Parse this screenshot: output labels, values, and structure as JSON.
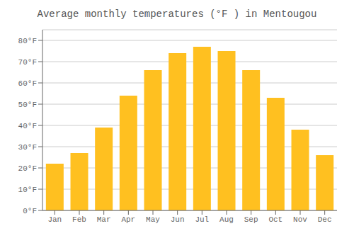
{
  "chart_data": {
    "type": "bar",
    "title": "Average monthly temperatures (°F ) in Mentougou",
    "categories": [
      "Jan",
      "Feb",
      "Mar",
      "Apr",
      "May",
      "Jun",
      "Jul",
      "Aug",
      "Sep",
      "Oct",
      "Nov",
      "Dec"
    ],
    "values": [
      22,
      27,
      39,
      54,
      66,
      74,
      77,
      75,
      66,
      53,
      38,
      26
    ],
    "color": "#FFC020",
    "ylim": [
      0,
      85
    ],
    "yticks": [
      {
        "value": 0,
        "label": "0°F"
      },
      {
        "value": 10,
        "label": "10°F"
      },
      {
        "value": 20,
        "label": "20°F"
      },
      {
        "value": 30,
        "label": "30°F"
      },
      {
        "value": 40,
        "label": "40°F"
      },
      {
        "value": 50,
        "label": "50°F"
      },
      {
        "value": 60,
        "label": "60°F"
      },
      {
        "value": 70,
        "label": "70°F"
      },
      {
        "value": 80,
        "label": "80°F"
      }
    ],
    "grid": true
  }
}
